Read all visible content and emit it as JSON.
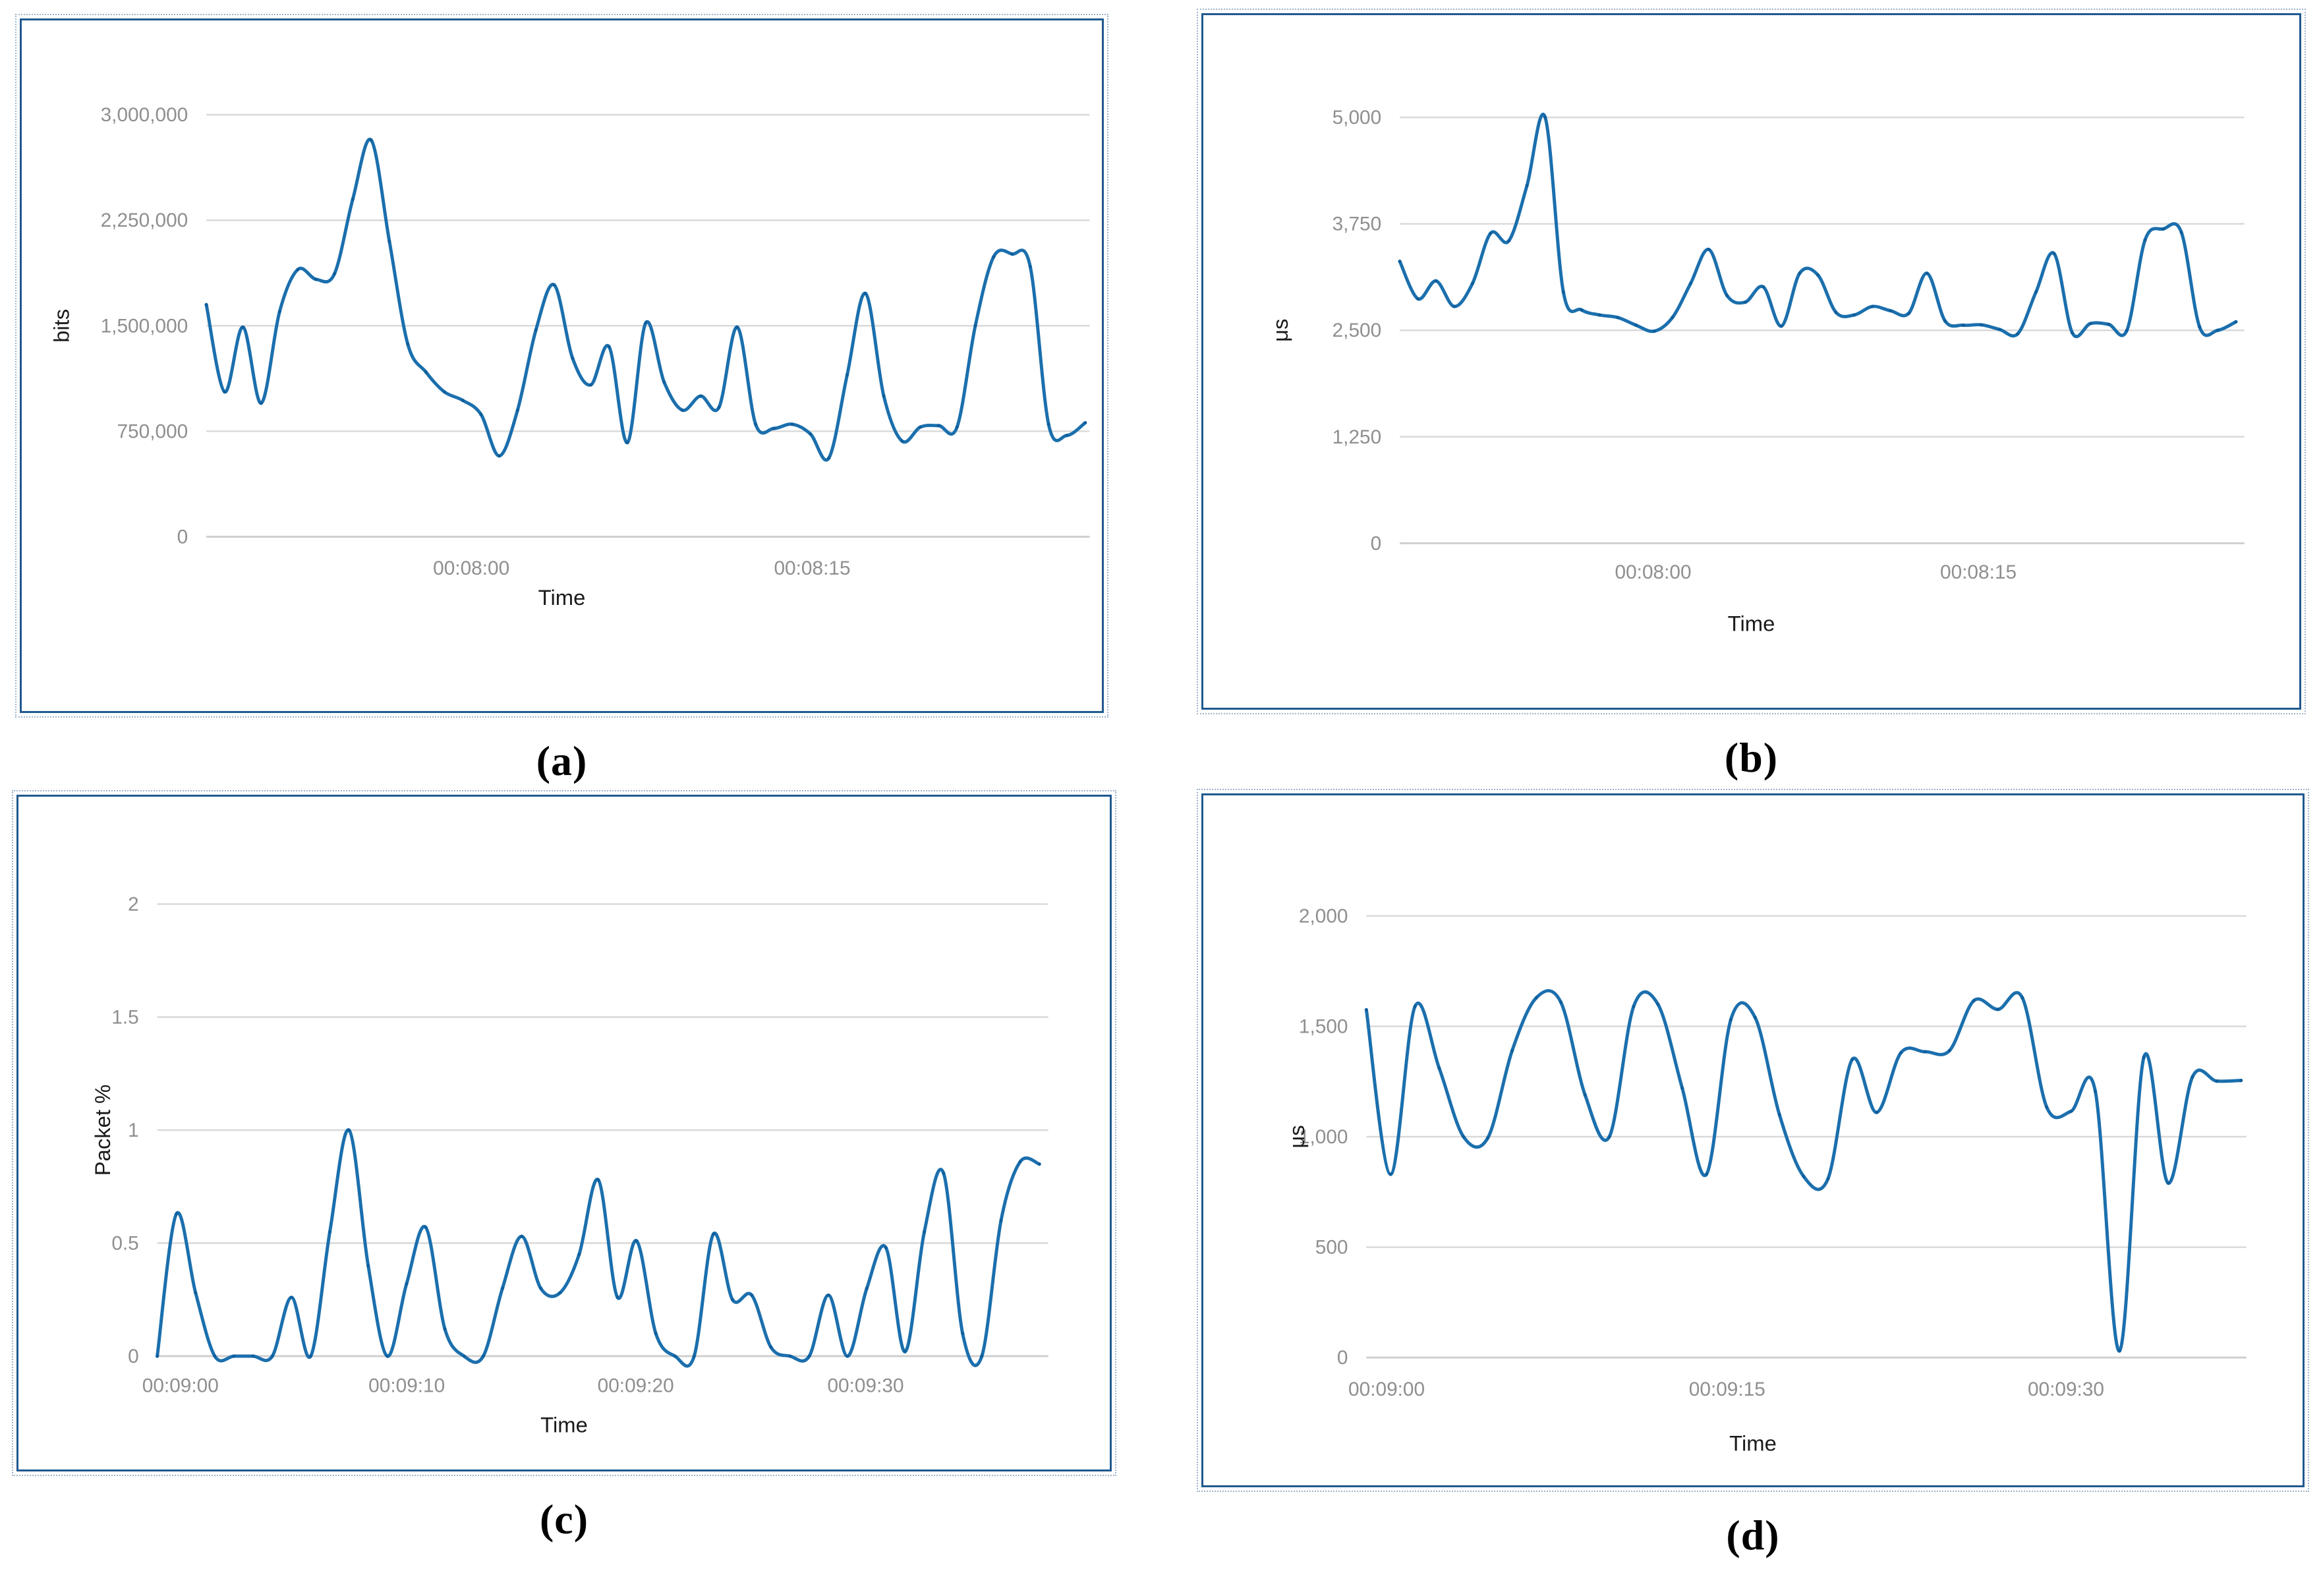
{
  "figure": {
    "captions": {
      "a": "(a)",
      "b": "(b)",
      "c": "(c)",
      "d": "(d)"
    },
    "colors": {
      "line": "#1b6fad",
      "marker": "#0e5e9c",
      "grid": "#d9d9d9",
      "zero_grid": "#cfcfcf",
      "tick_text": "#8f8f8f",
      "axis_text": "#1a1a1a",
      "panel_border": "#20598f",
      "dotted_outline": "#9db3cc"
    }
  },
  "chart_data": [
    {
      "id": "a",
      "type": "line",
      "title": "",
      "xlabel": "Time",
      "ylabel": "bits",
      "grid": true,
      "legend": "none",
      "ylim": [
        0,
        3000000
      ],
      "ytick_values": [
        0,
        750000,
        1500000,
        2250000,
        3000000
      ],
      "ytick_labels": [
        "0",
        "750,000",
        "1,500,000",
        "2,250,000",
        "3,000,000"
      ],
      "xticks": [
        {
          "pos": 0.3,
          "label": "00:08:00"
        },
        {
          "pos": 0.686,
          "label": "00:08:15"
        }
      ],
      "values": [
        1650000,
        1030000,
        1490000,
        950000,
        1600000,
        1900000,
        1830000,
        1870000,
        2400000,
        2820000,
        2100000,
        1370000,
        1170000,
        1030000,
        970000,
        870000,
        575000,
        900000,
        1470000,
        1790000,
        1270000,
        1080000,
        1350000,
        670000,
        1520000,
        1100000,
        900000,
        1000000,
        920000,
        1490000,
        800000,
        770000,
        800000,
        730000,
        560000,
        1150000,
        1730000,
        1000000,
        680000,
        780000,
        790000,
        780000,
        1500000,
        1990000,
        2010000,
        1920000,
        800000,
        720000,
        810000
      ]
    },
    {
      "id": "b",
      "type": "line",
      "title": "",
      "xlabel": "Time",
      "ylabel": "μs",
      "grid": true,
      "legend": "none",
      "ylim": [
        0,
        5000
      ],
      "ytick_values": [
        0,
        1250,
        2500,
        3750,
        5000
      ],
      "ytick_labels": [
        "0",
        "1,250",
        "2,500",
        "3,750",
        "5,000"
      ],
      "xticks": [
        {
          "pos": 0.3,
          "label": "00:08:00"
        },
        {
          "pos": 0.685,
          "label": "00:08:15"
        }
      ],
      "values": [
        3310,
        2870,
        3080,
        2780,
        3050,
        3640,
        3550,
        4200,
        5000,
        2950,
        2740,
        2680,
        2650,
        2560,
        2490,
        2650,
        3050,
        3450,
        2910,
        2830,
        3010,
        2550,
        3170,
        3150,
        2710,
        2680,
        2780,
        2730,
        2700,
        3170,
        2610,
        2560,
        2565,
        2510,
        2460,
        2950,
        3400,
        2470,
        2580,
        2570,
        2500,
        3560,
        3690,
        3650,
        2540,
        2500,
        2600
      ]
    },
    {
      "id": "c",
      "type": "line",
      "title": "",
      "xlabel": "Time",
      "ylabel": "Packet %",
      "grid": true,
      "legend": "none",
      "ylim": [
        0,
        2
      ],
      "ytick_values": [
        0,
        0.5,
        1,
        1.5,
        2
      ],
      "ytick_labels": [
        "0",
        "0.5",
        "1",
        "1.5",
        "2"
      ],
      "xticks": [
        {
          "pos": 0.026,
          "label": "00:09:00"
        },
        {
          "pos": 0.28,
          "label": "00:09:10"
        },
        {
          "pos": 0.537,
          "label": "00:09:20"
        },
        {
          "pos": 0.795,
          "label": "00:09:30"
        }
      ],
      "values": [
        0,
        0.63,
        0.28,
        0,
        0,
        0,
        0,
        0.26,
        0,
        0.55,
        1.0,
        0.4,
        0,
        0.32,
        0.57,
        0.12,
        0,
        0,
        0.3,
        0.53,
        0.3,
        0.28,
        0.45,
        0.78,
        0.26,
        0.51,
        0.1,
        0,
        0,
        0.54,
        0.25,
        0.27,
        0.04,
        0,
        0,
        0.27,
        0,
        0.3,
        0.48,
        0.02,
        0.55,
        0.81,
        0.1,
        0,
        0.6,
        0.86,
        0.85
      ]
    },
    {
      "id": "d",
      "type": "line",
      "title": "",
      "xlabel": "Time",
      "ylabel": "μs",
      "grid": true,
      "legend": "none",
      "ylim": [
        0,
        2000
      ],
      "ytick_values": [
        0,
        500,
        1000,
        1500,
        2000
      ],
      "ytick_labels": [
        "0",
        "500",
        "1,000",
        "1,500",
        "2,000"
      ],
      "xticks": [
        {
          "pos": 0.023,
          "label": "00:09:00"
        },
        {
          "pos": 0.41,
          "label": "00:09:15"
        },
        {
          "pos": 0.795,
          "label": "00:09:30"
        }
      ],
      "values": [
        1575,
        830,
        1590,
        1310,
        1000,
        995,
        1390,
        1630,
        1610,
        1190,
        1000,
        1590,
        1600,
        1220,
        830,
        1530,
        1540,
        1100,
        820,
        810,
        1350,
        1110,
        1380,
        1385,
        1390,
        1616,
        1577,
        1629,
        1134,
        1115,
        1206,
        30,
        1360,
        790,
        1271,
        1252,
        1255
      ]
    }
  ]
}
